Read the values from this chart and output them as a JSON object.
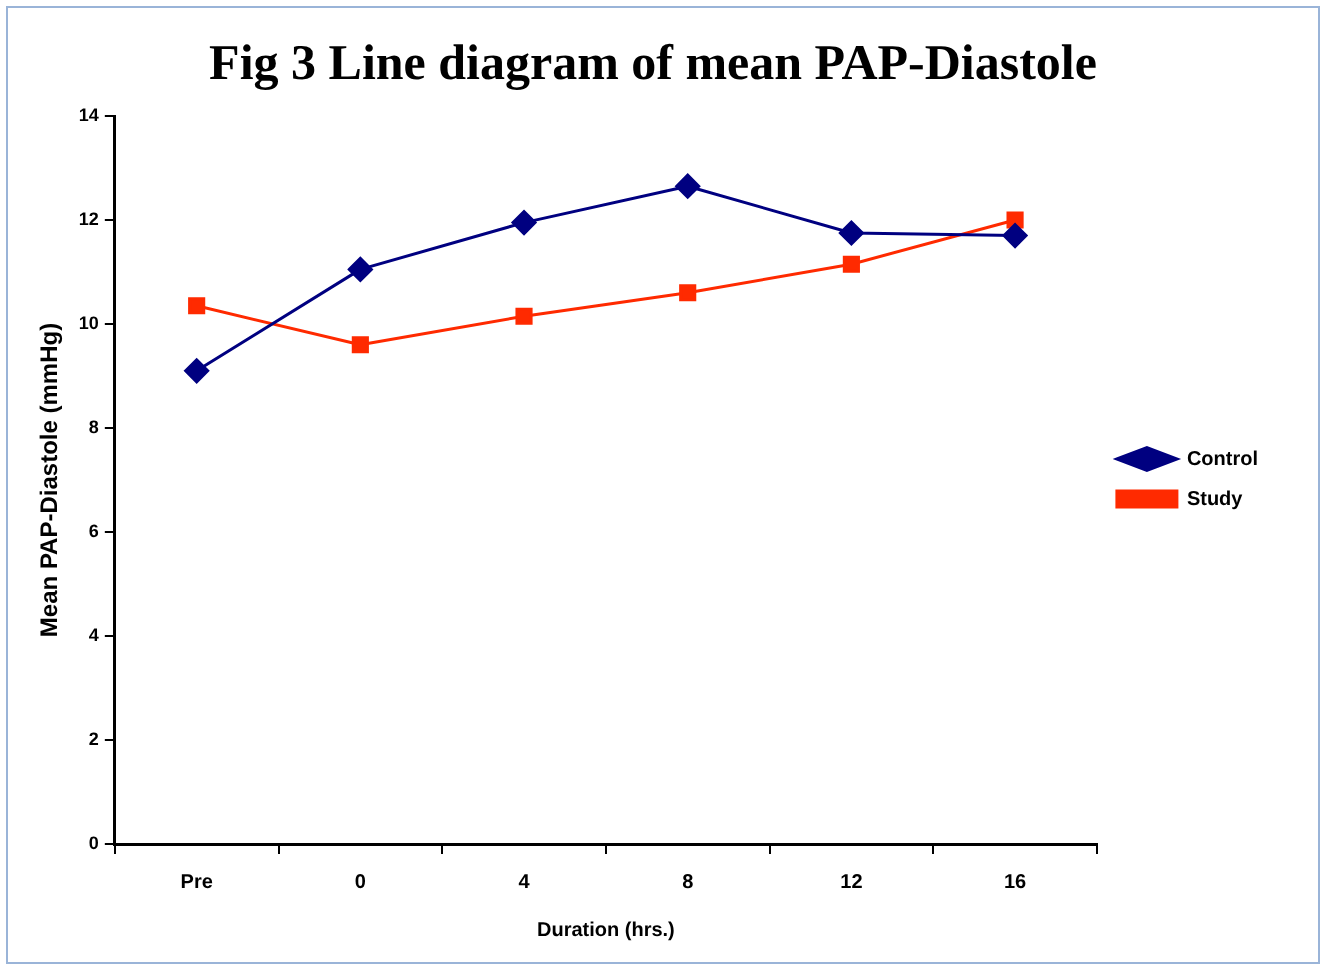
{
  "chart_data": {
    "type": "line",
    "title": "Fig 3 Line diagram of mean PAP-Diastole",
    "xlabel": "Duration (hrs.)",
    "ylabel": "Mean PAP-Diastole (mmHg)",
    "categories": [
      "Pre",
      "0",
      "4",
      "8",
      "12",
      "16"
    ],
    "series": [
      {
        "name": "Control",
        "color": "#000080",
        "marker": "diamond",
        "values": [
          9.1,
          11.05,
          11.95,
          12.65,
          11.75,
          11.7
        ]
      },
      {
        "name": "Study",
        "color": "#ff2a00",
        "marker": "square",
        "values": [
          10.35,
          9.6,
          10.15,
          10.6,
          11.15,
          12.0
        ]
      }
    ],
    "ylim": [
      0,
      14
    ],
    "yticks": [
      0,
      2,
      4,
      6,
      8,
      10,
      12,
      14
    ],
    "grid": false,
    "legend": "right",
    "line_style": "solid"
  }
}
